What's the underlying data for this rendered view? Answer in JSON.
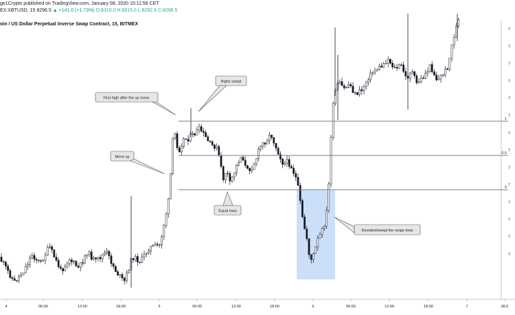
{
  "header": {
    "publisher": "ge1Crypto published on TradingView.com, January 08, 2020 10:11:56 CET",
    "symbol": "EX:XBTUSD, 15",
    "price": "8296.5",
    "change": "▲ +141.0 (+1.73%)",
    "ohlc": "O:8315.0 H:8315.0 L:8292.5 C:8296.5",
    "title": "oin / US Dollar Perpetual Inverse Swap Contract, 15, BITMEX"
  },
  "chart_data": {
    "type": "candlestick",
    "x_ticks": [
      "4",
      "06:00",
      "12:00",
      "18:00",
      "5",
      "06:00",
      "12:00",
      "18:00",
      "6",
      "06:00",
      "12:00",
      "18:00",
      "7",
      "06:0"
    ],
    "range_levels": [
      {
        "label": "1",
        "fraction": 1
      },
      {
        "label": "0.5",
        "fraction": 0.5
      },
      {
        "label": "0",
        "fraction": 0
      }
    ],
    "annotations": [
      {
        "text": "First high after the up move"
      },
      {
        "text": "Highs swept"
      },
      {
        "text": "Move up"
      },
      {
        "text": "Equal lows"
      },
      {
        "text": "Deviated/swept the range lows"
      }
    ],
    "y_axis_labels": [
      "7",
      "7",
      "7",
      "7",
      "7",
      "7",
      "7",
      "7",
      "7",
      "7",
      "7",
      "7",
      "7",
      "7"
    ],
    "colors": {
      "candle": "#131722",
      "range_line": "#787b86",
      "highlight_box": "#bbd4f7",
      "callout_fill": "#e6e6e6"
    }
  }
}
